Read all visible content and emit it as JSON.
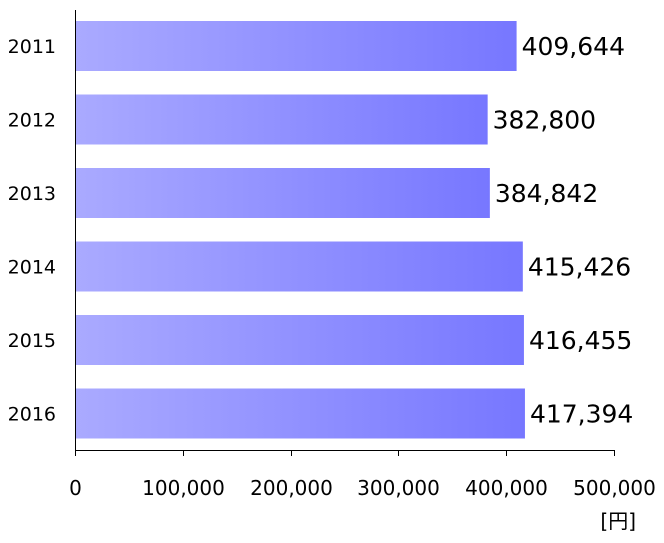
{
  "chart_data": {
    "type": "bar",
    "orientation": "horizontal",
    "categories": [
      "2011",
      "2012",
      "2013",
      "2014",
      "2015",
      "2016"
    ],
    "values": [
      409644,
      382800,
      384842,
      415426,
      416455,
      417394
    ],
    "value_labels": [
      "409,644",
      "382,800",
      "384,842",
      "415,426",
      "416,455",
      "417,394"
    ],
    "x_ticks": [
      0,
      100000,
      200000,
      300000,
      400000,
      500000
    ],
    "x_tick_labels": [
      "0",
      "100,000",
      "200,000",
      "300,000",
      "400,000",
      "500,000"
    ],
    "xlim": [
      0,
      500000
    ],
    "unit_label": "[円]",
    "grid": false,
    "bar_color_start": "#aaaaff",
    "bar_color_end": "#7777ff"
  }
}
